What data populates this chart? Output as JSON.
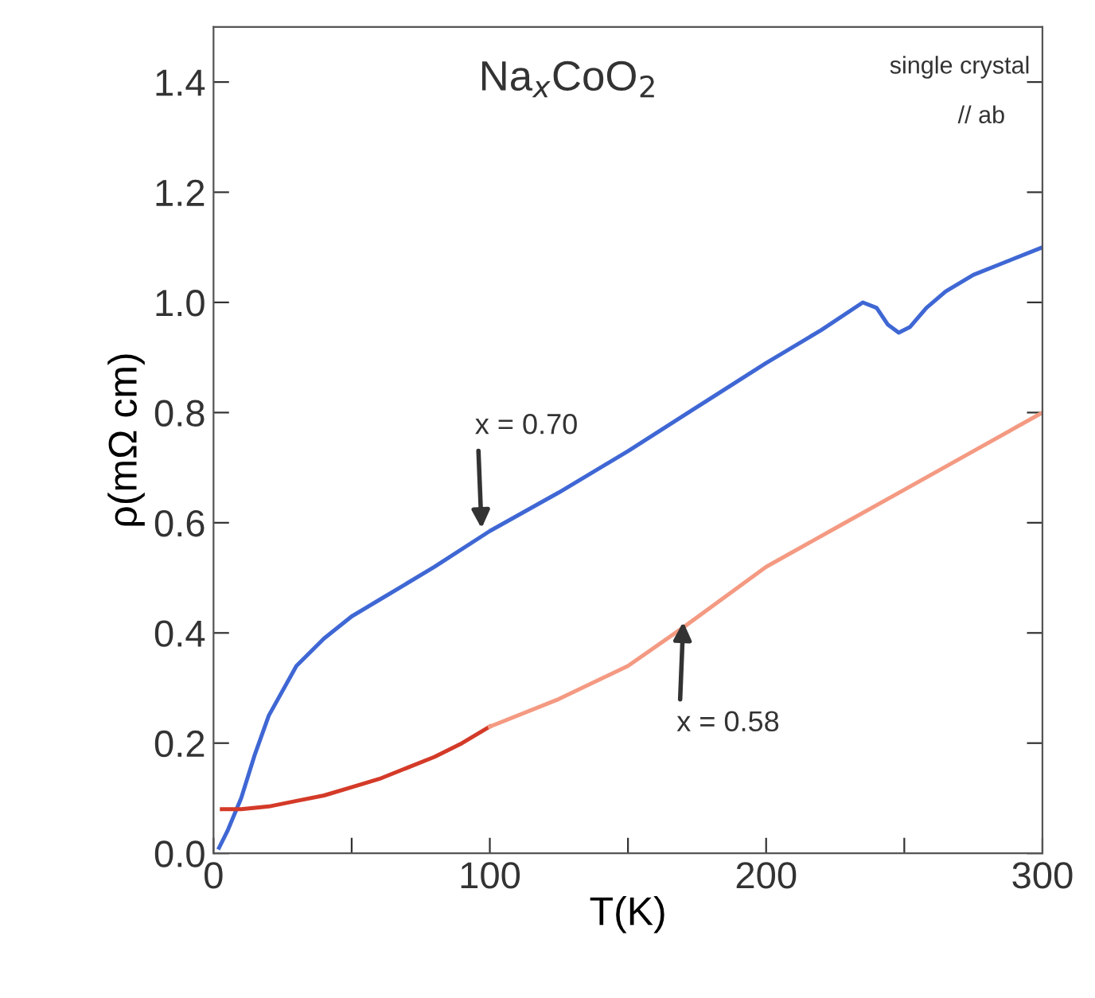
{
  "chart_data": {
    "type": "line",
    "xlabel": "T(K)",
    "ylabel": "ρ(mΩ cm)",
    "xlim": [
      0,
      300
    ],
    "ylim": [
      0,
      1.5
    ],
    "xticks": [
      0,
      {
        "value": 50,
        "label": null
      },
      100,
      {
        "value": 150,
        "label": null
      },
      200,
      {
        "value": 250,
        "label": null
      },
      300
    ],
    "yticks": [
      {
        "value": 0,
        "label": "0.0"
      },
      0.2,
      0.4,
      0.6,
      0.8,
      {
        "value": 1,
        "label": "1.0"
      },
      1.2,
      1.4
    ],
    "grid": false,
    "marker": "none",
    "line_style": "solid",
    "series": [
      {
        "color": "#3f67d4",
        "x": [
          2,
          5,
          10,
          15,
          20,
          30,
          40,
          50,
          60,
          80,
          100,
          125,
          150,
          175,
          200,
          220,
          235,
          240,
          244,
          248,
          252,
          258,
          265,
          275,
          285,
          300
        ],
        "values": [
          0.01,
          0.04,
          0.1,
          0.18,
          0.25,
          0.34,
          0.39,
          0.43,
          0.46,
          0.52,
          0.585,
          0.655,
          0.73,
          0.81,
          0.89,
          0.95,
          1.0,
          0.99,
          0.96,
          0.945,
          0.955,
          0.99,
          1.02,
          1.05,
          1.07,
          1.1
        ]
      },
      {
        "color": "#d43a28",
        "x": [
          3,
          10,
          20,
          30,
          40,
          50,
          60,
          70,
          80,
          90,
          100
        ],
        "values": [
          0.08,
          0.08,
          0.085,
          0.095,
          0.105,
          0.12,
          0.135,
          0.155,
          0.175,
          0.2,
          0.23
        ]
      },
      {
        "color": "#f49a82",
        "x": [
          100,
          125,
          150,
          170,
          200,
          225,
          250,
          275,
          300
        ],
        "values": [
          0.23,
          0.28,
          0.34,
          0.41,
          0.52,
          0.59,
          0.66,
          0.73,
          0.8
        ]
      }
    ],
    "annotations": [
      "Na$_{x}$CoO$_{2}$",
      "single crystal",
      "// ab",
      {
        "text": "x = 0.70",
        "x": 97,
        "y": 0.59
      },
      {
        "text": "x = 0.58",
        "x": 170,
        "y": 0.42
      }
    ]
  }
}
